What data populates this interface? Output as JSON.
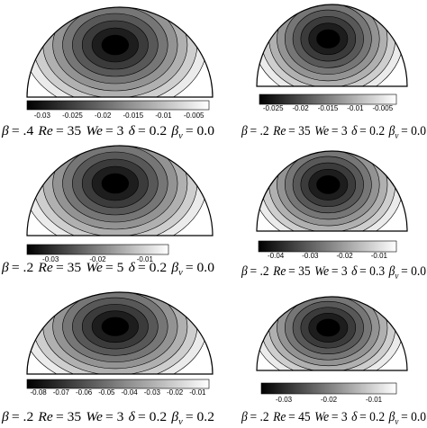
{
  "panels": [
    {
      "colorbar_ticks": [
        "-0.03",
        "-0.025",
        "-0.02",
        "-0.015",
        "-0.01",
        "-0.005"
      ],
      "caption": [
        {
          "symbol": "β",
          "value": "= .4"
        },
        {
          "symbol": "Re",
          "value": "= 35"
        },
        {
          "symbol": "We",
          "value": "= 3"
        },
        {
          "symbol": "δ",
          "value": "= 0.2"
        },
        {
          "symbol": "β",
          "subscript": "v",
          "value": "= 0.0"
        }
      ]
    },
    {
      "colorbar_ticks": [
        "-0.025",
        "-0.02",
        "-0.015",
        "-0.01",
        "-0.005"
      ],
      "caption": [
        {
          "symbol": "β",
          "value": "= .2"
        },
        {
          "symbol": "Re",
          "value": "= 35"
        },
        {
          "symbol": "We",
          "value": "= 3"
        },
        {
          "symbol": "δ",
          "value": "= 0.2"
        },
        {
          "symbol": "β",
          "subscript": "v",
          "value": "= 0.0"
        }
      ]
    },
    {
      "colorbar_ticks": [
        "-0.03",
        "-0.02",
        "-0.01"
      ],
      "caption": [
        {
          "symbol": "β",
          "value": "= .2"
        },
        {
          "symbol": "Re",
          "value": "= 35"
        },
        {
          "symbol": "We",
          "value": "= 5"
        },
        {
          "symbol": "δ",
          "value": "= 0.2"
        },
        {
          "symbol": "β",
          "subscript": "v",
          "value": "= 0.0"
        }
      ]
    },
    {
      "colorbar_ticks": [
        "-0.04",
        "-0.03",
        "-0.02",
        "-0.01"
      ],
      "caption": [
        {
          "symbol": "β",
          "value": "= .2"
        },
        {
          "symbol": "Re",
          "value": "= 35"
        },
        {
          "symbol": "We",
          "value": "= 3"
        },
        {
          "symbol": "δ",
          "value": "= 0.3"
        },
        {
          "symbol": "β",
          "subscript": "v",
          "value": "= 0.0"
        }
      ]
    },
    {
      "colorbar_ticks": [
        "-0.08",
        "-0.07",
        "-0.06",
        "-0.05",
        "-0.04",
        "-0.03",
        "-0.02",
        "-0.01"
      ],
      "caption": [
        {
          "symbol": "β",
          "value": "= .2"
        },
        {
          "symbol": "Re",
          "value": "= 35"
        },
        {
          "symbol": "We",
          "value": "= 3"
        },
        {
          "symbol": "δ",
          "value": "= 0.2"
        },
        {
          "symbol": "β",
          "subscript": "v",
          "value": "= 0.2"
        }
      ]
    },
    {
      "colorbar_ticks": [
        "-0.03",
        "-0.02",
        "-0.01"
      ],
      "caption": [
        {
          "symbol": "β",
          "value": "= .2"
        },
        {
          "symbol": "Re",
          "value": "= 45"
        },
        {
          "symbol": "We",
          "value": "= 3"
        },
        {
          "symbol": "δ",
          "value": "= 0.2"
        },
        {
          "symbol": "β",
          "subscript": "v",
          "value": "= 0.0"
        }
      ]
    }
  ]
}
